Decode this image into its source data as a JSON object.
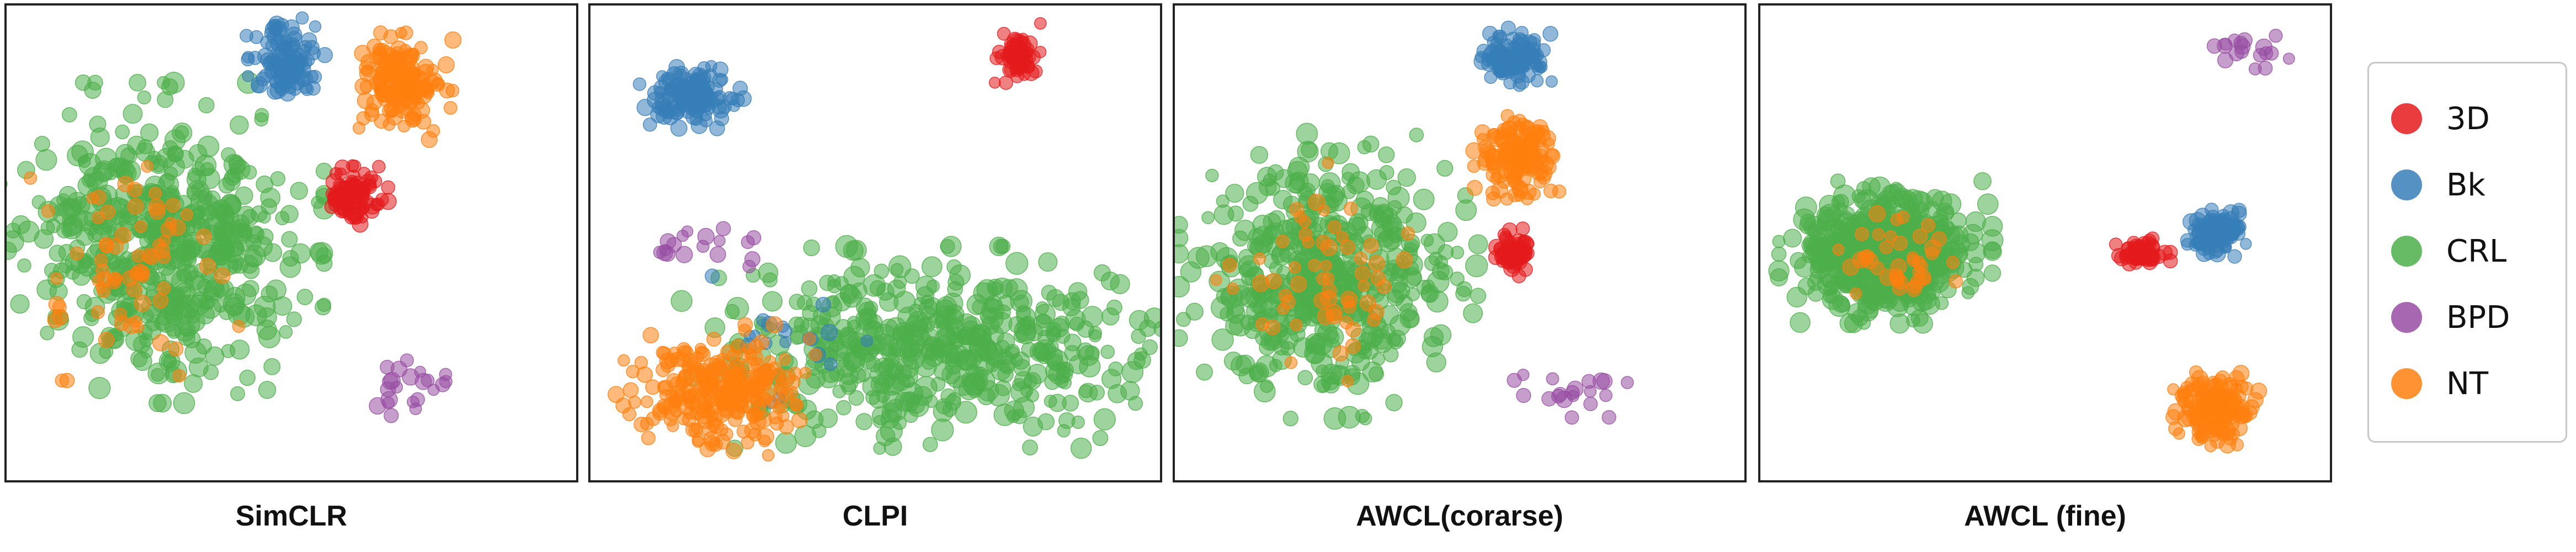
{
  "chart_data": {
    "type": "scatter",
    "legend": {
      "placement": "right",
      "entries": [
        {
          "label": "3D",
          "color": "#e41a1c"
        },
        {
          "label": "Bk",
          "color": "#377eb8"
        },
        {
          "label": "CRL",
          "color": "#4daf4a"
        },
        {
          "label": "BPD",
          "color": "#984ea3"
        },
        {
          "label": "NT",
          "color": "#ff7f0e"
        }
      ]
    },
    "panels": [
      {
        "title": "SimCLR",
        "clusters": [
          {
            "class": "CRL",
            "cx": 0.27,
            "cy": 0.5,
            "rx": 0.23,
            "ry": 0.27,
            "n": 520
          },
          {
            "class": "NT",
            "cx": 0.22,
            "cy": 0.54,
            "rx": 0.15,
            "ry": 0.2,
            "n": 70
          },
          {
            "class": "Bk",
            "cx": 0.49,
            "cy": 0.12,
            "rx": 0.055,
            "ry": 0.075,
            "n": 110
          },
          {
            "class": "NT",
            "cx": 0.69,
            "cy": 0.17,
            "rx": 0.075,
            "ry": 0.09,
            "n": 160
          },
          {
            "class": "3D",
            "cx": 0.61,
            "cy": 0.4,
            "rx": 0.048,
            "ry": 0.05,
            "n": 85
          },
          {
            "class": "BPD",
            "cx": 0.69,
            "cy": 0.8,
            "rx": 0.065,
            "ry": 0.075,
            "n": 22
          }
        ]
      },
      {
        "title": "CLPI",
        "clusters": [
          {
            "class": "CRL",
            "cx": 0.61,
            "cy": 0.72,
            "rx": 0.36,
            "ry": 0.17,
            "n": 480
          },
          {
            "class": "NT",
            "cx": 0.22,
            "cy": 0.81,
            "rx": 0.14,
            "ry": 0.11,
            "n": 260
          },
          {
            "class": "Bk",
            "cx": 0.18,
            "cy": 0.19,
            "rx": 0.075,
            "ry": 0.055,
            "n": 140
          },
          {
            "class": "3D",
            "cx": 0.75,
            "cy": 0.1,
            "rx": 0.032,
            "ry": 0.05,
            "n": 60
          },
          {
            "class": "BPD",
            "cx": 0.2,
            "cy": 0.52,
            "rx": 0.14,
            "ry": 0.04,
            "n": 18
          },
          {
            "class": "Bk",
            "cx": 0.35,
            "cy": 0.72,
            "rx": 0.12,
            "ry": 0.12,
            "n": 20
          }
        ]
      },
      {
        "title": "AWCL(corarse)",
        "clusters": [
          {
            "class": "CRL",
            "cx": 0.27,
            "cy": 0.57,
            "rx": 0.21,
            "ry": 0.24,
            "n": 480
          },
          {
            "class": "NT",
            "cx": 0.26,
            "cy": 0.58,
            "rx": 0.16,
            "ry": 0.2,
            "n": 60
          },
          {
            "class": "Bk",
            "cx": 0.6,
            "cy": 0.11,
            "rx": 0.05,
            "ry": 0.05,
            "n": 110
          },
          {
            "class": "NT",
            "cx": 0.6,
            "cy": 0.32,
            "rx": 0.06,
            "ry": 0.07,
            "n": 150
          },
          {
            "class": "3D",
            "cx": 0.6,
            "cy": 0.52,
            "rx": 0.032,
            "ry": 0.04,
            "n": 60
          },
          {
            "class": "BPD",
            "cx": 0.71,
            "cy": 0.82,
            "rx": 0.12,
            "ry": 0.04,
            "n": 20
          }
        ]
      },
      {
        "title": "AWCL (fine)",
        "clusters": [
          {
            "class": "CRL",
            "cx": 0.22,
            "cy": 0.52,
            "rx": 0.15,
            "ry": 0.12,
            "n": 520
          },
          {
            "class": "NT",
            "cx": 0.25,
            "cy": 0.53,
            "rx": 0.1,
            "ry": 0.09,
            "n": 40
          },
          {
            "class": "3D",
            "cx": 0.67,
            "cy": 0.52,
            "rx": 0.04,
            "ry": 0.03,
            "n": 50
          },
          {
            "class": "Bk",
            "cx": 0.8,
            "cy": 0.48,
            "rx": 0.045,
            "ry": 0.04,
            "n": 110
          },
          {
            "class": "NT",
            "cx": 0.8,
            "cy": 0.85,
            "rx": 0.06,
            "ry": 0.065,
            "n": 170
          },
          {
            "class": "BPD",
            "cx": 0.86,
            "cy": 0.1,
            "rx": 0.06,
            "ry": 0.06,
            "n": 18
          }
        ]
      }
    ]
  }
}
